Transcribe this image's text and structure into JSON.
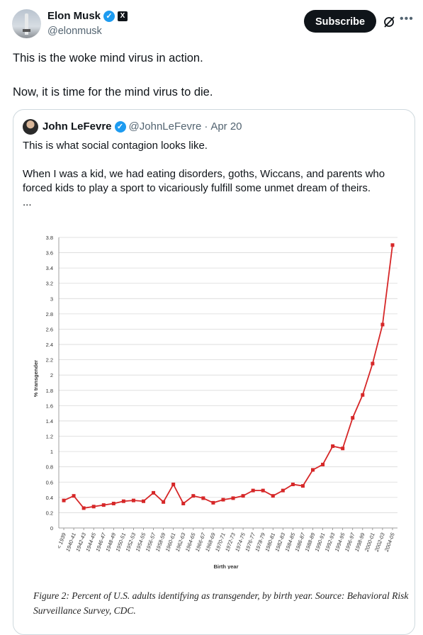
{
  "author": {
    "name": "Elon Musk",
    "handle": "@elonmusk",
    "verified_icon": "verified-badge-icon",
    "affiliation_icon": "x-logo-icon"
  },
  "actions": {
    "subscribe_label": "Subscribe",
    "grok_icon": "grok-icon",
    "more_icon": "more-icon"
  },
  "tweet": {
    "line1": "This is the woke mind virus in action.",
    "line2": "Now, it is time for the mind virus to die."
  },
  "quote": {
    "name": "John LeFevre",
    "handle": "@JohnLeFevre",
    "separator": "·",
    "date": "Apr 20",
    "para1": "This is what social contagion looks like.",
    "para2": "When I was a kid, we had eating disorders, goths, Wiccans, and parents who forced kids to play a sport to vicariously fulfill some unmet dream of theirs.",
    "ellipsis": "...",
    "caption": "Figure 2: Percent of U.S. adults identifying as transgender, by birth year. Source: Behavioral Risk Surveillance Survey, CDC."
  },
  "colors": {
    "line": "#d62728",
    "accent": "#1d9bf0"
  },
  "chart_data": {
    "type": "line",
    "title": "",
    "xlabel": "Birth year",
    "ylabel": "% transgender",
    "ylim": [
      0,
      3.8
    ],
    "yticks": [
      0,
      0.2,
      0.4,
      0.6,
      0.8,
      1,
      1.2,
      1.4,
      1.6,
      1.8,
      2,
      2.2,
      2.4,
      2.6,
      2.8,
      3,
      3.2,
      3.4,
      3.6,
      3.8
    ],
    "grid": true,
    "categories": [
      "< 1939",
      "1940-41",
      "1942-43",
      "1944-45",
      "1946-47",
      "1948-49",
      "1950-51",
      "1952-53",
      "1954-55",
      "1956-57",
      "1958-59",
      "1960-61",
      "1962-63",
      "1964-65",
      "1966-67",
      "1968-69",
      "1970-71",
      "1972-73",
      "1974-75",
      "1976-77",
      "1978-79",
      "1980-81",
      "1982-83",
      "1984-85",
      "1986-87",
      "1988-89",
      "1990-91",
      "1992-93",
      "1994-95",
      "1996-97",
      "1998-99",
      "2000-01",
      "2002-03",
      "2004-05"
    ],
    "values": [
      0.36,
      0.42,
      0.26,
      0.28,
      0.3,
      0.32,
      0.35,
      0.36,
      0.35,
      0.46,
      0.34,
      0.57,
      0.32,
      0.42,
      0.39,
      0.33,
      0.37,
      0.39,
      0.42,
      0.49,
      0.49,
      0.42,
      0.49,
      0.57,
      0.55,
      0.76,
      0.83,
      1.07,
      1.04,
      1.44,
      1.74,
      2.15,
      2.66,
      3.7
    ]
  }
}
